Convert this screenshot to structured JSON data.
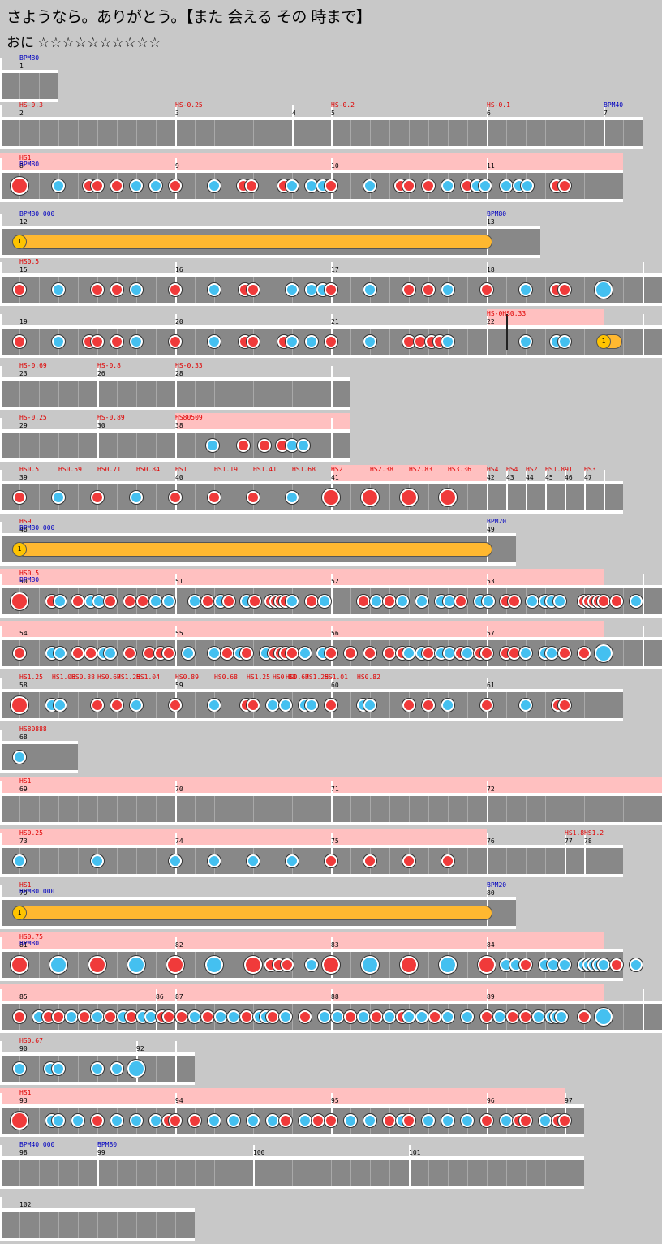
{
  "header": {
    "title": "さようなら。ありがとう。【また 会える その 時まで】",
    "difficulty_label": "おに",
    "stars": "☆☆☆☆☆☆☆☆☆☆"
  },
  "colors": {
    "don": "#f03a3a",
    "ka": "#44c0f0",
    "roll": "#ffb830",
    "lane": "#888888",
    "pink": "#ffc0c0"
  },
  "rows": [
    {
      "y": 66,
      "measures": [
        {
          "n": "1"
        }
      ],
      "bpm": [
        "BPM80"
      ],
      "hs": []
    },
    {
      "y": 124,
      "measures": [
        {
          "n": "2"
        },
        {
          "n": "3"
        },
        {
          "n": "4"
        },
        {
          "n": "5"
        },
        {
          "n": "6"
        },
        {
          "n": "7"
        }
      ],
      "hs": [
        "HS-0.3",
        "HS-0.25",
        "HS-0.2",
        "HS-0.1"
      ],
      "bpm": [
        "BPM40"
      ]
    },
    {
      "y": 189,
      "measures": [
        {
          "n": "8"
        },
        {
          "n": "9"
        },
        {
          "n": "10"
        },
        {
          "n": "11"
        }
      ],
      "hs": [
        "HS1"
      ],
      "bpm": [
        "BPM80"
      ]
    },
    {
      "y": 258,
      "measures": [
        {
          "n": "12"
        },
        {
          "n": "13"
        }
      ],
      "hs": [],
      "bpm": [
        "BPM80 000",
        "BPM80"
      ]
    },
    {
      "y": 317,
      "measures": [
        {
          "n": "15"
        },
        {
          "n": "16"
        },
        {
          "n": "17"
        },
        {
          "n": "18"
        }
      ],
      "hs": [
        "HS0.5"
      ],
      "bpm": []
    },
    {
      "y": 381,
      "measures": [
        {
          "n": "19"
        },
        {
          "n": "20"
        },
        {
          "n": "21"
        },
        {
          "n": "22"
        }
      ],
      "hs": [
        "HS-0HS0.33"
      ],
      "bpm": []
    },
    {
      "y": 445,
      "measures": [
        {
          "n": "23"
        },
        {
          "n": "26"
        },
        {
          "n": "28"
        }
      ],
      "hs": [
        "HS-0.69",
        "HS-0.8",
        "HS-0.33"
      ],
      "bpm": []
    },
    {
      "y": 509,
      "measures": [
        {
          "n": "29"
        },
        {
          "n": "30"
        },
        {
          "n": "38"
        }
      ],
      "hs": [
        "HS-0.25",
        "HS-0.89",
        "HS80509"
      ],
      "bpm": []
    },
    {
      "y": 573,
      "measures": [
        {
          "n": "39"
        },
        {
          "n": "40"
        },
        {
          "n": "41"
        },
        {
          "n": "42"
        },
        {
          "n": "43"
        },
        {
          "n": "44"
        },
        {
          "n": "45"
        },
        {
          "n": "46"
        },
        {
          "n": "47"
        }
      ],
      "hs": [
        "HS0.5",
        "HS0.59",
        "HS0.71",
        "HS0.84",
        "HS1",
        "HS1.19",
        "HS1.41",
        "HS1.68",
        "HS2",
        "HS2.38",
        "HS2.83",
        "HS3.36",
        "HS4",
        "HS4",
        "HS2",
        "HS1.891",
        "HS3"
      ],
      "bpm": []
    },
    {
      "y": 637,
      "measures": [
        {
          "n": "48"
        },
        {
          "n": "49"
        }
      ],
      "hs": [
        "HS9"
      ],
      "bpm": [
        "BPM80 000",
        "BPM20"
      ]
    },
    {
      "y": 701,
      "measures": [
        {
          "n": "50"
        },
        {
          "n": "51"
        },
        {
          "n": "52"
        },
        {
          "n": "53"
        }
      ],
      "hs": [
        "HS0.5"
      ],
      "bpm": [
        "BPM80"
      ]
    },
    {
      "y": 765,
      "measures": [
        {
          "n": "54"
        },
        {
          "n": "55"
        },
        {
          "n": "56"
        },
        {
          "n": "57"
        }
      ],
      "hs": [],
      "bpm": []
    },
    {
      "y": 829,
      "measures": [
        {
          "n": "58"
        },
        {
          "n": "59"
        },
        {
          "n": "60"
        },
        {
          "n": "61"
        }
      ],
      "hs": [
        "HS1.25",
        "HS1.06",
        "HS0.88",
        "HS0.67",
        "HS1.25",
        "HS1.04",
        "HS0.89",
        "HS0.68",
        "HS1.25",
        "HS0.88",
        "HS0.67",
        "HS1.25",
        "HS1.01",
        "HS0.82"
      ],
      "bpm": []
    },
    {
      "y": 893,
      "measures": [
        {
          "n": "68"
        }
      ],
      "hs": [
        "HS80888"
      ],
      "bpm": []
    },
    {
      "y": 957,
      "measures": [
        {
          "n": "69"
        },
        {
          "n": "70"
        },
        {
          "n": "71"
        },
        {
          "n": "72"
        }
      ],
      "hs": [
        "HS1"
      ],
      "bpm": []
    },
    {
      "y": 1021,
      "measures": [
        {
          "n": "73"
        },
        {
          "n": "74"
        },
        {
          "n": "75"
        },
        {
          "n": "76"
        },
        {
          "n": "77"
        },
        {
          "n": "78"
        }
      ],
      "hs": [
        "HS0.25",
        "HS1.8",
        "HS1.2"
      ],
      "bpm": []
    },
    {
      "y": 1085,
      "measures": [
        {
          "n": "79"
        },
        {
          "n": "80"
        }
      ],
      "hs": [
        "HS1"
      ],
      "bpm": [
        "BPM80 000",
        "BPM20"
      ]
    },
    {
      "y": 1149,
      "measures": [
        {
          "n": "81"
        },
        {
          "n": "82"
        },
        {
          "n": "83"
        },
        {
          "n": "84"
        }
      ],
      "hs": [
        "HS0.75"
      ],
      "bpm": [
        "BPM80"
      ]
    },
    {
      "y": 1213,
      "measures": [
        {
          "n": "85"
        },
        {
          "n": "86"
        },
        {
          "n": "87"
        },
        {
          "n": "88"
        },
        {
          "n": "89"
        }
      ],
      "hs": [],
      "bpm": []
    },
    {
      "y": 1277,
      "measures": [
        {
          "n": "90"
        },
        {
          "n": "92"
        }
      ],
      "hs": [
        "HS0.67"
      ],
      "bpm": []
    },
    {
      "y": 1341,
      "measures": [
        {
          "n": "93"
        },
        {
          "n": "94"
        },
        {
          "n": "95"
        },
        {
          "n": "96"
        },
        {
          "n": "97"
        }
      ],
      "hs": [
        "HS1"
      ],
      "bpm": []
    },
    {
      "y": 1405,
      "measures": [
        {
          "n": "98"
        },
        {
          "n": "99"
        },
        {
          "n": "100"
        },
        {
          "n": "101"
        }
      ],
      "hs": [],
      "bpm": [
        "BPM40 000",
        "BPM80"
      ]
    },
    {
      "y": 1469,
      "measures": [
        {
          "n": "102"
        }
      ],
      "hs": [],
      "bpm": []
    }
  ]
}
